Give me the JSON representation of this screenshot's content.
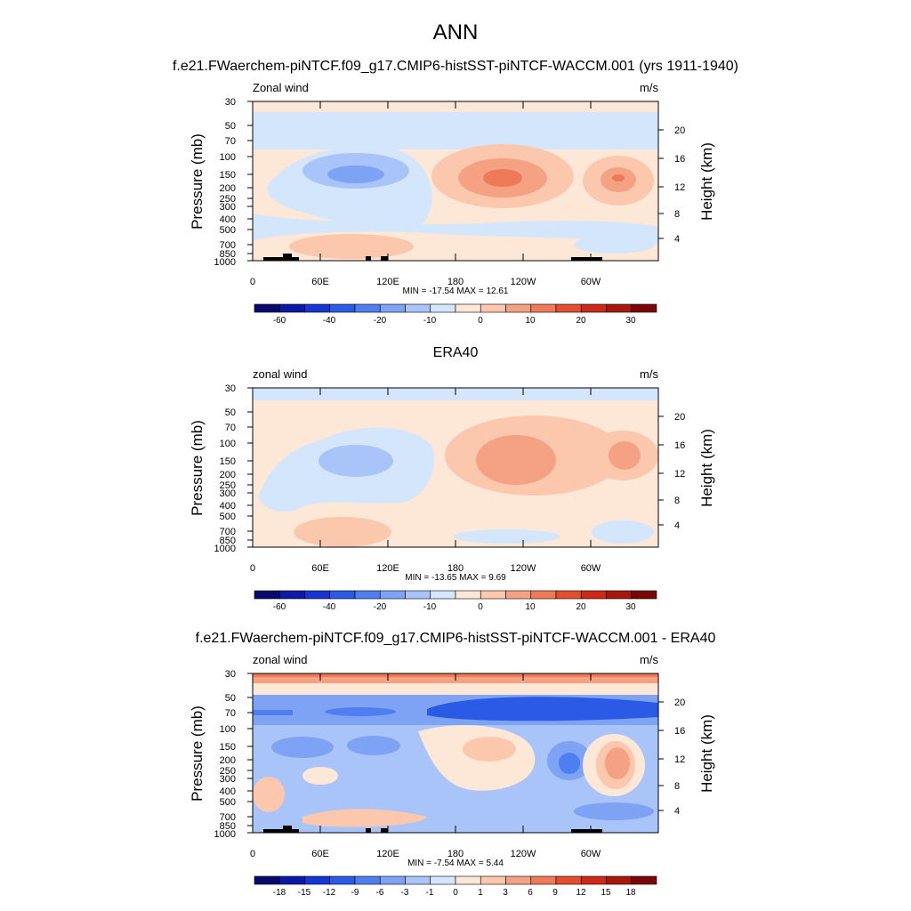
{
  "title": "ANN",
  "chart_data": [
    {
      "type": "contour",
      "title": "f.e21.FWaerchem-piNTCF.f09_g17.CMIP6-histSST-piNTCF-WACCM.001 (yrs 1911-1940)",
      "left_label": "Zonal wind",
      "right_label": "m/s",
      "ylabel": "Pressure (mb)",
      "y2label": "Height (km)",
      "x_ticks": [
        "0",
        "60E",
        "120E",
        "180",
        "120W",
        "60W"
      ],
      "pressure_ticks": [
        "30",
        "50",
        "70",
        "100",
        "150",
        "200",
        "250",
        "300",
        "400",
        "500",
        "700",
        "850",
        "1000"
      ],
      "height_ticks": [
        "20",
        "16",
        "12",
        "8",
        "4"
      ],
      "stats": "MIN = -17.54  MAX =  12.61",
      "colorbar_labels": [
        "-60",
        "-40",
        "-20",
        "-10",
        "0",
        "10",
        "20",
        "30"
      ],
      "has_topography": true
    },
    {
      "type": "contour",
      "title": "ERA40",
      "left_label": "zonal wind",
      "right_label": "m/s",
      "ylabel": "Pressure (mb)",
      "y2label": "Height (km)",
      "x_ticks": [
        "0",
        "60E",
        "120E",
        "180",
        "120W",
        "60W"
      ],
      "pressure_ticks": [
        "30",
        "50",
        "70",
        "100",
        "150",
        "200",
        "250",
        "300",
        "400",
        "500",
        "700",
        "850",
        "1000"
      ],
      "height_ticks": [
        "20",
        "16",
        "12",
        "8",
        "4"
      ],
      "stats": "MIN = -13.65  MAX =   9.69",
      "colorbar_labels": [
        "-60",
        "-40",
        "-20",
        "-10",
        "0",
        "10",
        "20",
        "30"
      ],
      "has_topography": false
    },
    {
      "type": "contour",
      "title": "f.e21.FWaerchem-piNTCF.f09_g17.CMIP6-histSST-piNTCF-WACCM.001 - ERA40",
      "left_label": "zonal wind",
      "right_label": "m/s",
      "ylabel": "Pressure (mb)",
      "y2label": "Height (km)",
      "x_ticks": [
        "0",
        "60E",
        "120E",
        "180",
        "120W",
        "60W"
      ],
      "pressure_ticks": [
        "30",
        "50",
        "70",
        "100",
        "150",
        "200",
        "250",
        "300",
        "400",
        "500",
        "700",
        "850",
        "1000"
      ],
      "height_ticks": [
        "20",
        "16",
        "12",
        "8",
        "4"
      ],
      "stats": "MIN =  -7.54  MAX =   5.44",
      "colorbar_labels": [
        "-18",
        "-15",
        "-12",
        "-9",
        "-6",
        "-3",
        "-1",
        "0",
        "1",
        "3",
        "6",
        "9",
        "12",
        "15",
        "18"
      ],
      "has_topography": true
    }
  ],
  "colors": {
    "palette": [
      "#08086e",
      "#0a1aa6",
      "#1536d2",
      "#2a5ae6",
      "#4f7ef0",
      "#7ea3f4",
      "#a9c4f8",
      "#d3e6fb",
      "#fde7d7",
      "#fbc8ad",
      "#f5a184",
      "#ee7a58",
      "#e34f2e",
      "#cc2a16",
      "#a8170c",
      "#7a0707"
    ],
    "topography": "#000000"
  }
}
